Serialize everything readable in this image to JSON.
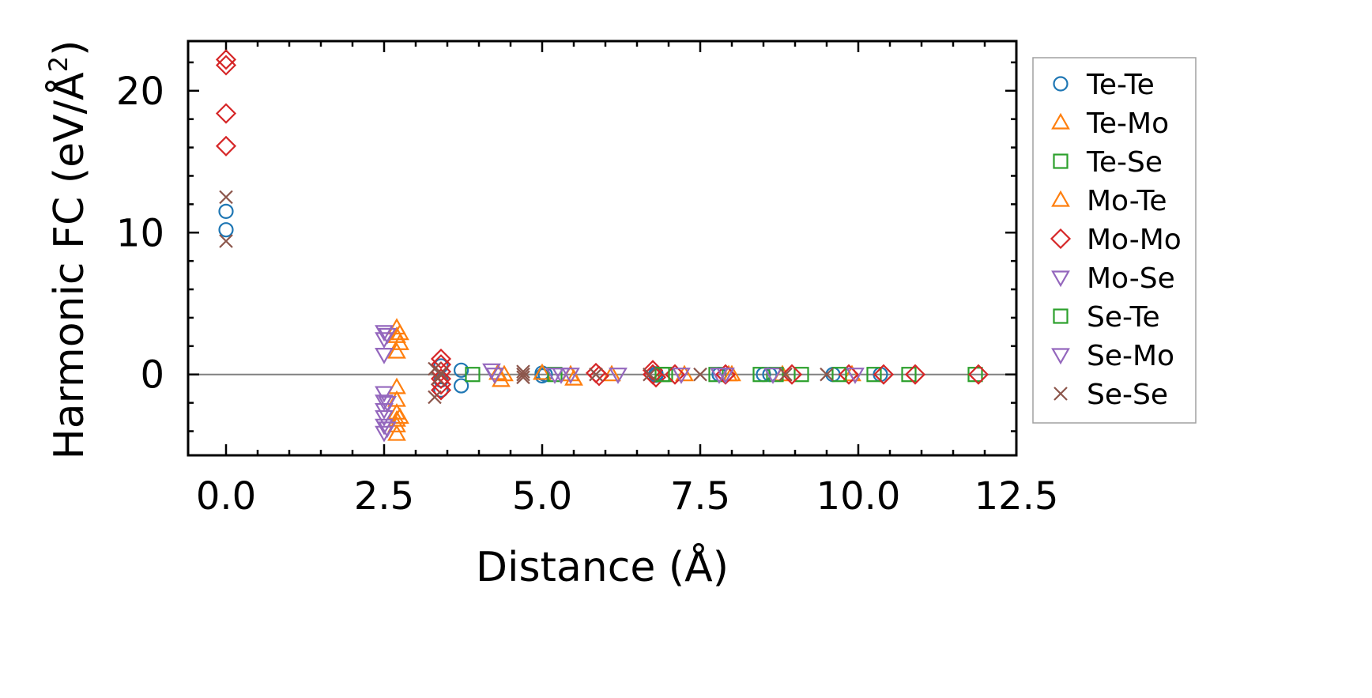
{
  "chart_data": {
    "type": "scatter",
    "title": "",
    "xlabel": "Distance (Å)",
    "ylabel_main": "Harmonic FC (eV/Å",
    "ylabel_sup": "2",
    "ylabel_close": ")",
    "xlim": [
      -0.6,
      12.5
    ],
    "ylim": [
      -5.7,
      23.5
    ],
    "x_ticks": [
      0.0,
      2.5,
      5.0,
      7.5,
      10.0,
      12.5
    ],
    "x_tick_labels": [
      "0.0",
      "2.5",
      "5.0",
      "7.5",
      "10.0",
      "12.5"
    ],
    "y_ticks": [
      0,
      10,
      20
    ],
    "y_tick_labels": [
      "0",
      "10",
      "20"
    ],
    "reference_line_y": 0,
    "legend_position": "right",
    "series": [
      {
        "name": "Te-Te",
        "marker": "circle",
        "color": "#1f77b4",
        "x": [
          0,
          0,
          3.4,
          3.4,
          3.4,
          3.72,
          3.72,
          5.0,
          5.0,
          5.05,
          6.8,
          6.8,
          7.8,
          7.8,
          8.5,
          8.6,
          9.6,
          10.35
        ],
        "y": [
          11.5,
          10.2,
          0.6,
          -0.4,
          -1.1,
          0.3,
          -0.8,
          0.1,
          -0.1,
          0.0,
          0.05,
          -0.05,
          0.0,
          0.0,
          0.0,
          0.0,
          0.0,
          0.0
        ]
      },
      {
        "name": "Te-Mo",
        "marker": "triangle-up",
        "color": "#ff7f0e",
        "x": [
          2.7,
          2.7,
          2.7,
          2.7,
          2.7,
          2.7,
          2.7,
          2.7,
          2.7,
          4.3,
          4.35,
          5.0,
          5.5,
          6.1,
          7.25,
          7.95,
          8.8,
          9.9
        ],
        "y": [
          3.3,
          2.7,
          1.6,
          -0.9,
          -1.8,
          -2.7,
          -3.2,
          -3.6,
          -4.2,
          0.1,
          -0.4,
          0.1,
          -0.3,
          0.0,
          0.0,
          0.0,
          0.0,
          0.0
        ]
      },
      {
        "name": "Te-Se",
        "marker": "square",
        "color": "#2ca02c",
        "x": [
          3.9,
          5.2,
          6.95,
          7.75,
          8.45,
          9.1,
          10.25,
          10.8,
          11.85
        ],
        "y": [
          0.0,
          0.0,
          0.0,
          0.0,
          0.0,
          0.0,
          0.0,
          0.0,
          0.0
        ]
      },
      {
        "name": "Mo-Te",
        "marker": "triangle-up",
        "color": "#ff7f0e",
        "x": [
          2.75,
          2.75,
          2.75,
          4.4,
          5.45,
          8.0
        ],
        "y": [
          2.9,
          2.2,
          -3.0,
          0.0,
          0.0,
          0.0
        ]
      },
      {
        "name": "Mo-Mo",
        "marker": "diamond",
        "color": "#d62728",
        "x": [
          0,
          0,
          0,
          0,
          3.4,
          3.4,
          3.4,
          3.4,
          3.4,
          3.4,
          5.85,
          5.9,
          6.75,
          6.75,
          6.8,
          7.1,
          7.9,
          8.95,
          9.85,
          10.4,
          10.9,
          11.9
        ],
        "y": [
          22.2,
          21.8,
          18.4,
          16.1,
          1.1,
          0.7,
          0.2,
          -0.3,
          -0.7,
          -1.1,
          0.1,
          -0.1,
          0.3,
          0.0,
          -0.2,
          0.0,
          0.0,
          0.0,
          0.0,
          0.0,
          0.0,
          0.0
        ]
      },
      {
        "name": "Mo-Se",
        "marker": "triangle-down",
        "color": "#9467bd",
        "x": [
          2.5,
          2.5,
          2.5,
          2.5,
          2.5,
          2.5,
          2.5,
          2.5,
          2.5,
          4.2,
          4.25,
          5.2,
          5.45,
          6.2,
          7.2,
          7.8
        ],
        "y": [
          3.0,
          2.5,
          1.4,
          -1.3,
          -1.9,
          -2.5,
          -3.0,
          -3.6,
          -4.1,
          0.3,
          0.0,
          0.0,
          0.0,
          0.0,
          0.0,
          0.0
        ]
      },
      {
        "name": "Se-Te",
        "marker": "square",
        "color": "#2ca02c",
        "x": [
          6.9,
          8.7,
          9.7
        ],
        "y": [
          0.0,
          0.0,
          0.0
        ]
      },
      {
        "name": "Se-Mo",
        "marker": "triangle-down",
        "color": "#9467bd",
        "x": [
          2.55,
          2.55,
          2.55,
          5.3,
          7.9,
          8.65,
          9.95
        ],
        "y": [
          2.8,
          -2.0,
          -3.8,
          0.0,
          0.0,
          0.0,
          0.0
        ]
      },
      {
        "name": "Se-Se",
        "marker": "x",
        "color": "#8c564b",
        "x": [
          0,
          0,
          3.3,
          3.3,
          3.35,
          3.4,
          4.7,
          4.7,
          4.7,
          5.85,
          6.7,
          7.5,
          8.85,
          9.5
        ],
        "y": [
          12.5,
          9.4,
          0.4,
          -1.6,
          -0.3,
          0.1,
          0.2,
          0.0,
          -0.2,
          0.0,
          0.0,
          0.0,
          0.0,
          0.0
        ]
      }
    ]
  }
}
